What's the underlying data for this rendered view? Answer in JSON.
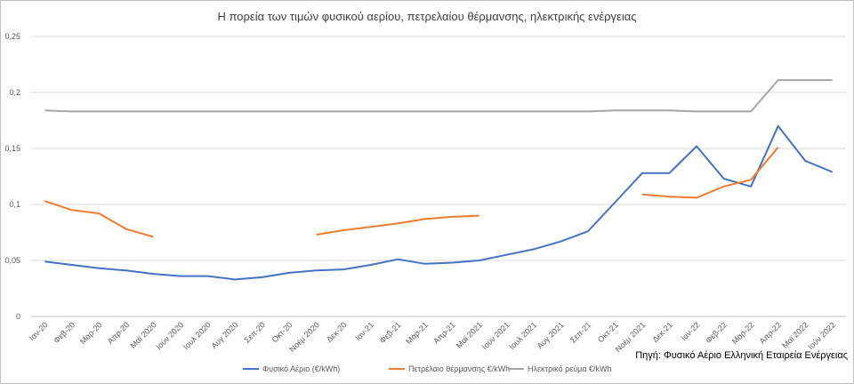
{
  "chart_data": {
    "type": "line",
    "title": "Η πορεία των τιμών φυσικού αερίου, πετρελαίου θέρμανσης, ηλεκτρικής ενέργειας",
    "source": "Πηγή: Φυσικό Αέριο Ελληνική Εταιρεία Ενέργειας",
    "xlabel": "",
    "ylabel": "",
    "ylim": [
      0,
      0.25
    ],
    "yticks": [
      "0",
      "0,05",
      "0,1",
      "0,15",
      "0,2",
      "0,25"
    ],
    "grid": true,
    "legend_position": "bottom",
    "categories": [
      "Ιαν-20",
      "Φεβ-20",
      "Μαρ-20",
      "Απρ-20",
      "Μαϊ 2020",
      "Ιούν 2020",
      "Ιουλ 2020",
      "Αυγ 2020",
      "Σεπ-20",
      "Οκτ-20",
      "Νοέμ 2020",
      "Δεκ-20",
      "Ιαν-21",
      "Φεβ-21",
      "Μαρ-21",
      "Απρ-21",
      "Μαϊ 2021",
      "Ιούν 2021",
      "Ιουλ 2021",
      "Αυγ 2021",
      "Σεπ-21",
      "Οκτ-21",
      "Νοέμ 2021",
      "Δεκ-21",
      "Ιαν-22",
      "Φεβ-22",
      "Μαρ-22",
      "Απρ-22",
      "Μαϊ 2022",
      "Ιούν 2022"
    ],
    "series": [
      {
        "name": "Φυσικό Αέριο (€/kWh)",
        "color": "#4472c4",
        "values": [
          0.049,
          0.046,
          0.043,
          0.041,
          0.038,
          0.036,
          0.036,
          0.033,
          0.035,
          0.039,
          0.041,
          0.042,
          0.046,
          0.051,
          0.047,
          0.048,
          0.05,
          0.055,
          0.06,
          0.067,
          0.076,
          0.102,
          0.128,
          0.128,
          0.152,
          0.123,
          0.116,
          0.17,
          0.139,
          0.129
        ]
      },
      {
        "name": "Πετρέλαιο θέρμανσης €/kWh",
        "color": "#ed7d31",
        "values": [
          0.103,
          0.095,
          0.092,
          0.078,
          0.071,
          null,
          null,
          null,
          null,
          null,
          0.073,
          0.077,
          0.08,
          0.083,
          0.087,
          0.089,
          0.09,
          null,
          null,
          null,
          null,
          null,
          0.109,
          0.107,
          0.106,
          0.116,
          0.122,
          0.151,
          null,
          null
        ]
      },
      {
        "name": "Ηλεκτρικό ρεύμα €/kWh",
        "color": "#a5a5a5",
        "values": [
          0.184,
          0.183,
          0.183,
          0.183,
          0.183,
          0.183,
          0.183,
          0.183,
          0.183,
          0.183,
          0.183,
          0.183,
          0.183,
          0.183,
          0.183,
          0.183,
          0.183,
          0.183,
          0.183,
          0.183,
          0.183,
          0.184,
          0.184,
          0.184,
          0.183,
          0.183,
          0.183,
          0.211,
          0.211,
          0.211
        ]
      }
    ]
  }
}
